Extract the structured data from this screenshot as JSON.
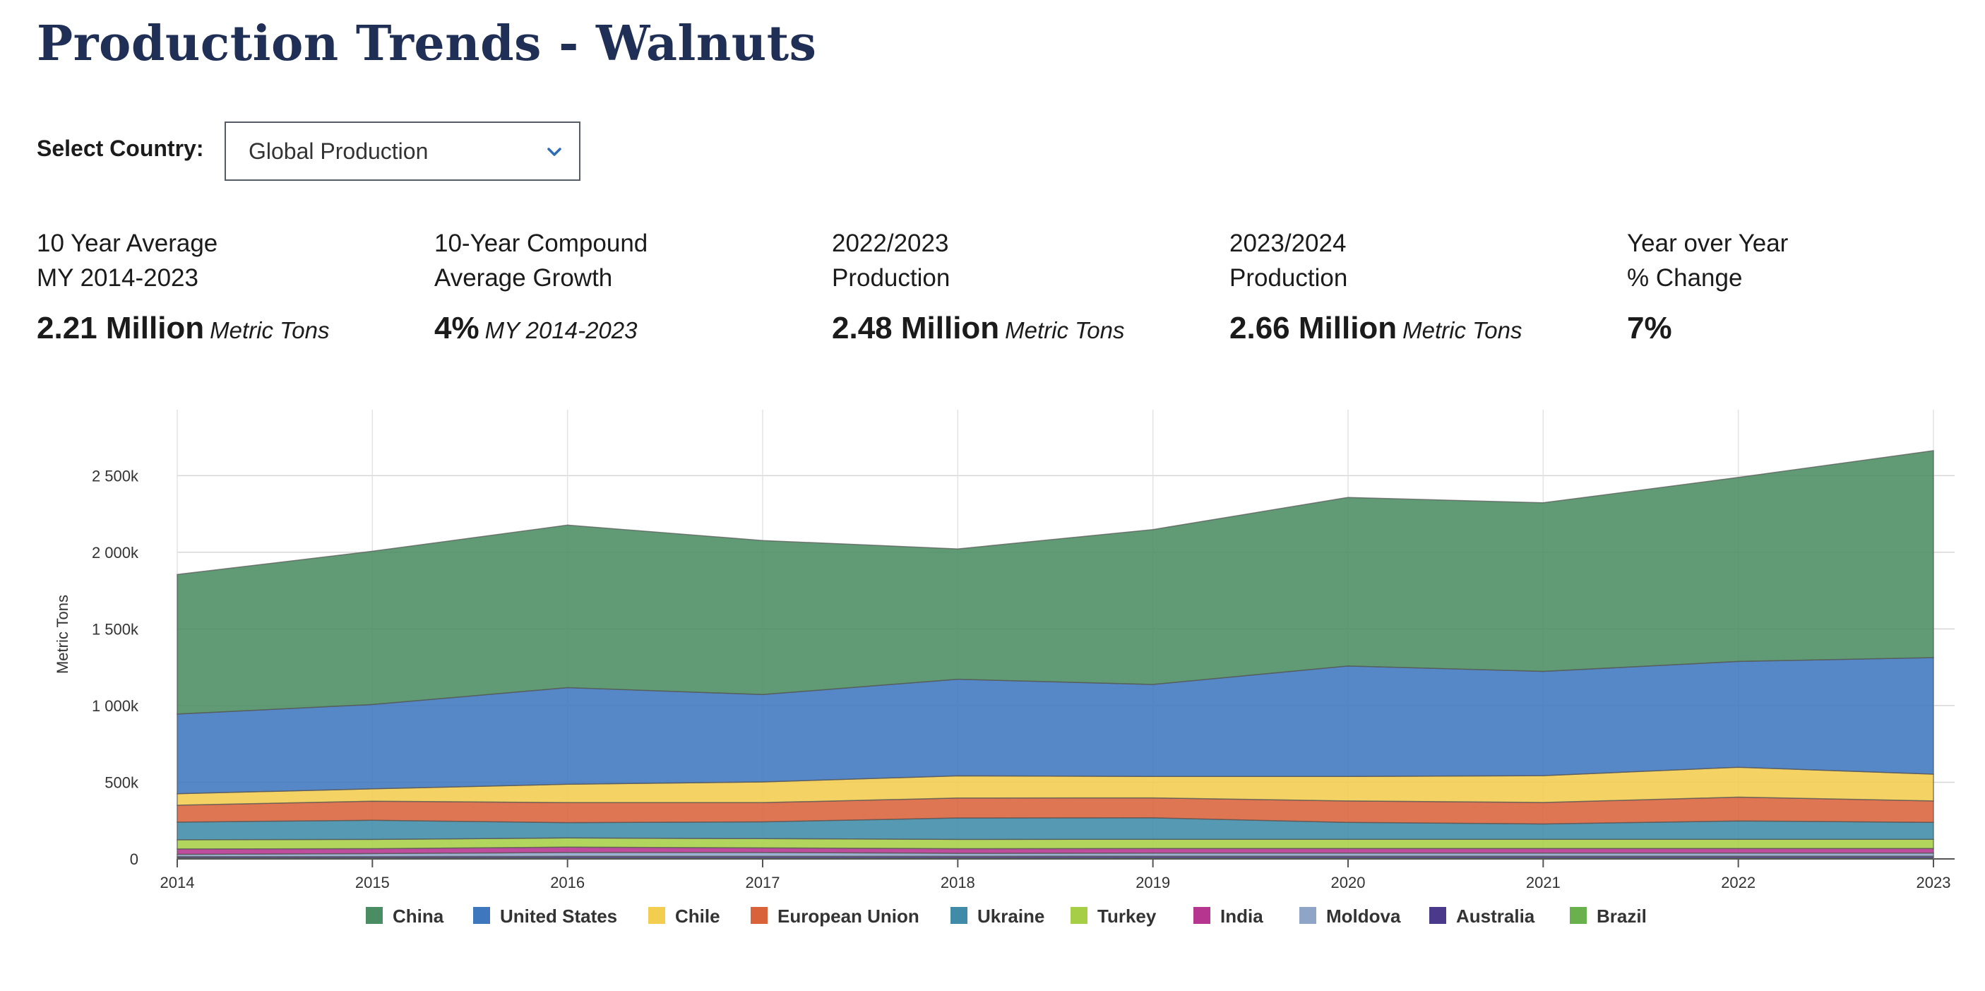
{
  "page": {
    "title": "Production Trends - Walnuts"
  },
  "selector": {
    "label": "Select Country:",
    "selected": "Global Production"
  },
  "stats": [
    {
      "line1": "10 Year Average",
      "line2": "MY 2014-2023",
      "value": "2.21 Million",
      "unit": "Metric Tons"
    },
    {
      "line1": "10-Year Compound",
      "line2": "Average Growth",
      "value": "4%",
      "unit": "MY 2014-2023"
    },
    {
      "line1": "2022/2023",
      "line2": "Production",
      "value": "2.48 Million",
      "unit": "Metric Tons"
    },
    {
      "line1": "2023/2024",
      "line2": "Production",
      "value": "2.66 Million",
      "unit": "Metric Tons"
    },
    {
      "line1": "Year over Year",
      "line2": "% Change",
      "value": "7%",
      "unit": ""
    }
  ],
  "icons": {
    "dropdown": "chevron-down-icon"
  },
  "colors": {
    "title": "#1f2f55",
    "chevron": "#2e6cb5"
  },
  "chart_data": {
    "type": "area",
    "stacked": true,
    "ylabel": "Metric Tons",
    "xlabel": "",
    "x": [
      2014,
      2015,
      2016,
      2017,
      2018,
      2019,
      2020,
      2021,
      2022,
      2023
    ],
    "ylim": [
      0,
      2930000
    ],
    "yticks": [
      0,
      500000,
      1000000,
      1500000,
      2000000,
      2500000
    ],
    "ytick_labels": [
      "0",
      "500k",
      "1 000k",
      "1 500k",
      "2 000k",
      "2 500k"
    ],
    "grid": true,
    "legend_position": "bottom",
    "series": [
      {
        "name": "Brazil",
        "color": "#6ab04c",
        "values": [
          5000,
          5000,
          5000,
          5000,
          5000,
          5000,
          5000,
          5000,
          5000,
          5000
        ]
      },
      {
        "name": "Australia",
        "color": "#4b3a8c",
        "values": [
          10000,
          10000,
          12000,
          12000,
          12000,
          13000,
          13000,
          13000,
          13000,
          13000
        ]
      },
      {
        "name": "Moldova",
        "color": "#8fa5c8",
        "values": [
          15000,
          20000,
          25000,
          25000,
          20000,
          20000,
          20000,
          20000,
          20000,
          20000
        ]
      },
      {
        "name": "India",
        "color": "#b5358f",
        "values": [
          35000,
          32000,
          35000,
          30000,
          30000,
          30000,
          30000,
          30000,
          30000,
          30000
        ]
      },
      {
        "name": "Turkey",
        "color": "#a6cf47",
        "values": [
          60000,
          60000,
          60000,
          60000,
          60000,
          60000,
          60000,
          60000,
          60000,
          60000
        ]
      },
      {
        "name": "Ukraine",
        "color": "#3f8ba8",
        "values": [
          115000,
          125000,
          100000,
          110000,
          140000,
          140000,
          110000,
          100000,
          120000,
          110000
        ]
      },
      {
        "name": "European Union",
        "color": "#d9623b",
        "values": [
          110000,
          125000,
          130000,
          125000,
          130000,
          130000,
          140000,
          140000,
          155000,
          140000
        ]
      },
      {
        "name": "Chile",
        "color": "#f2cd4f",
        "values": [
          75000,
          80000,
          120000,
          135000,
          145000,
          140000,
          160000,
          175000,
          195000,
          175000
        ]
      },
      {
        "name": "United States",
        "color": "#3f77bf",
        "values": [
          520000,
          550000,
          630000,
          570000,
          630000,
          600000,
          720000,
          680000,
          690000,
          760000
        ]
      },
      {
        "name": "China",
        "color": "#4a8d62",
        "values": [
          910000,
          1000000,
          1060000,
          1005000,
          850000,
          1010000,
          1100000,
          1100000,
          1200000,
          1350000
        ]
      }
    ],
    "legend_order": [
      "China",
      "United States",
      "Chile",
      "European Union",
      "Ukraine",
      "Turkey",
      "India",
      "Moldova",
      "Australia",
      "Brazil"
    ]
  }
}
